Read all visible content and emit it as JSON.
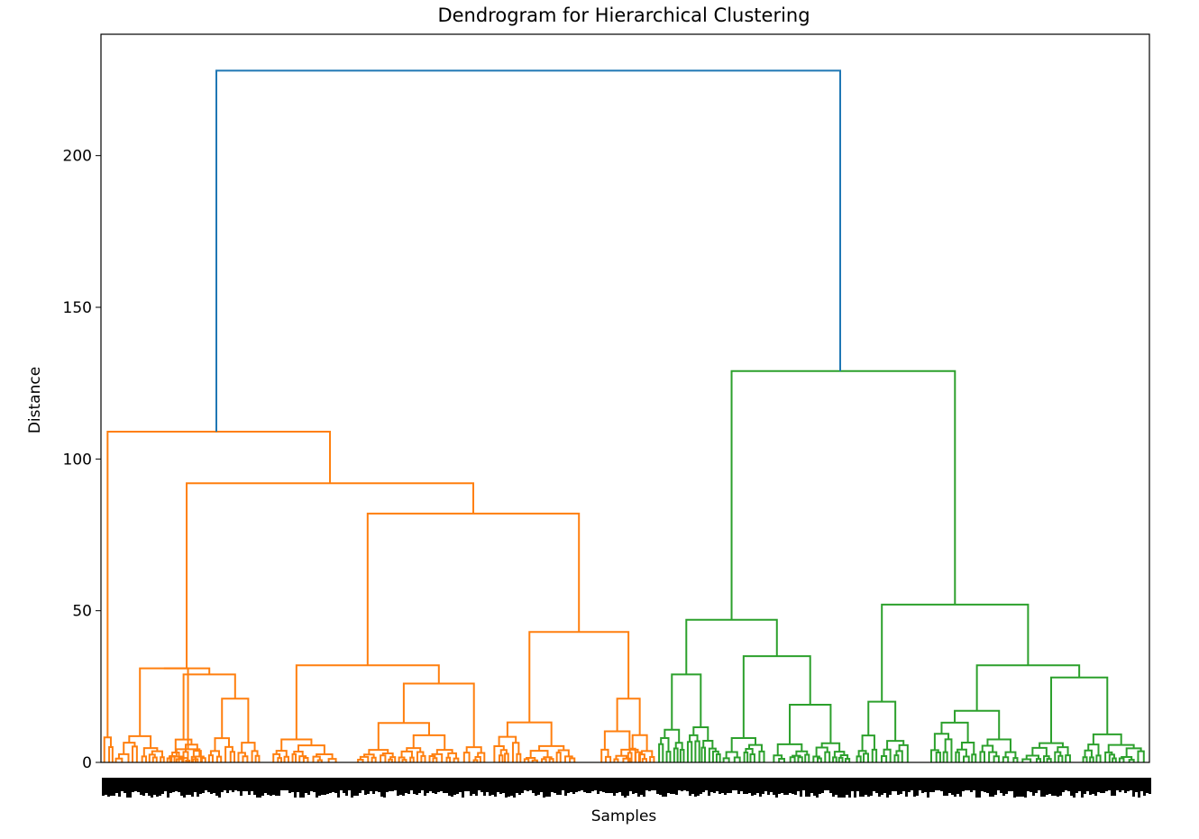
{
  "chart_data": {
    "type": "dendrogram",
    "title": "Dendrogram for Hierarchical Clustering",
    "xlabel": "Samples",
    "ylabel": "Distance",
    "ylim": [
      0,
      240
    ],
    "yticks": [
      0,
      50,
      100,
      150,
      200
    ],
    "grid": false,
    "legend": "none",
    "x_tick_labels": "dense (unreadable)",
    "link_colors": {
      "root": "#1f77b4",
      "cluster_1": "#ff7f0e",
      "cluster_2": "#2ca02c"
    },
    "merges": [
      {
        "cluster": "root",
        "height": 228,
        "children": [
          "cluster_1",
          "cluster_2"
        ]
      },
      {
        "cluster": "cluster_1",
        "height": 109
      },
      {
        "cluster": "cluster_1",
        "height": 92
      },
      {
        "cluster": "cluster_1",
        "height": 82
      },
      {
        "cluster": "cluster_1",
        "height": 43
      },
      {
        "cluster": "cluster_1",
        "height": 32
      },
      {
        "cluster": "cluster_1",
        "height": 31
      },
      {
        "cluster": "cluster_1",
        "height": 29
      },
      {
        "cluster": "cluster_1",
        "height": 26
      },
      {
        "cluster": "cluster_1",
        "height": 21
      },
      {
        "cluster": "cluster_1",
        "height": 17
      },
      {
        "cluster": "cluster_1",
        "height": 13
      },
      {
        "cluster": "cluster_1",
        "height": 11
      },
      {
        "cluster": "cluster_2",
        "height": 129
      },
      {
        "cluster": "cluster_2",
        "height": 52
      },
      {
        "cluster": "cluster_2",
        "height": 47
      },
      {
        "cluster": "cluster_2",
        "height": 35
      },
      {
        "cluster": "cluster_2",
        "height": 32
      },
      {
        "cluster": "cluster_2",
        "height": 29
      },
      {
        "cluster": "cluster_2",
        "height": 28
      },
      {
        "cluster": "cluster_2",
        "height": 20
      },
      {
        "cluster": "cluster_2",
        "height": 19
      },
      {
        "cluster": "cluster_2",
        "height": 17
      },
      {
        "cluster": "cluster_2",
        "height": 13
      },
      {
        "cluster": "cluster_2",
        "height": 12
      }
    ]
  }
}
